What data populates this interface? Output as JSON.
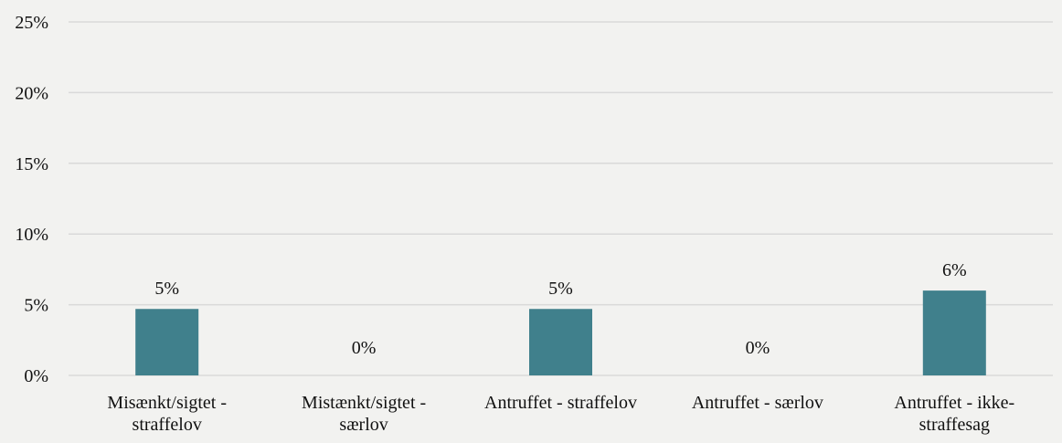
{
  "chart_data": {
    "type": "bar",
    "title": "",
    "xlabel": "",
    "ylabel": "",
    "ylim": [
      0,
      25
    ],
    "y_ticks": [
      "0%",
      "5%",
      "10%",
      "15%",
      "20%",
      "25%"
    ],
    "y_tick_values": [
      0,
      5,
      10,
      15,
      20,
      25
    ],
    "grid": true,
    "categories": [
      [
        "Misænkt/sigtet -",
        "straffelov"
      ],
      [
        "Mistænkt/sigtet -",
        "særlov"
      ],
      [
        "Antruffet - straffelov"
      ],
      [
        "Antruffet - særlov"
      ],
      [
        "Antruffet - ikke-",
        "straffesag"
      ]
    ],
    "values": [
      4.7,
      0,
      4.7,
      0,
      6.0
    ],
    "data_labels": [
      "5%",
      "0%",
      "5%",
      "0%",
      "6%"
    ]
  },
  "colors": {
    "bar": "#40808c",
    "gridline": "#d9d9d9",
    "background": "#f2f2f0",
    "text": "#111111"
  }
}
